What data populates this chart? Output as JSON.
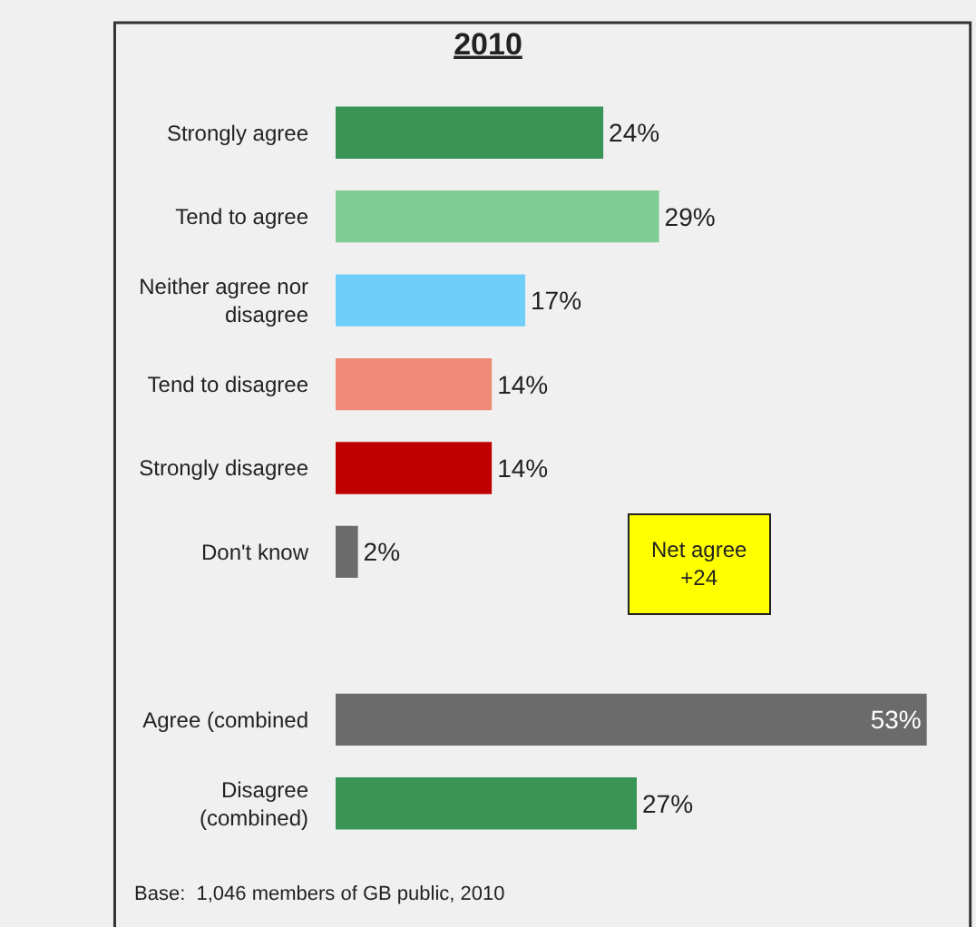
{
  "chart_data": {
    "type": "bar",
    "orientation": "horizontal",
    "title": "2010",
    "categories": [
      "Strongly agree",
      "Tend to agree",
      "Neither agree nor disagree",
      "Tend to disagree",
      "Strongly disagree",
      "Don't know",
      null,
      "Agree (combined",
      "Disagree (combined)"
    ],
    "values": [
      24,
      29,
      17,
      14,
      14,
      2,
      null,
      53,
      27
    ],
    "colors": [
      "#3a9455",
      "#7fcc95",
      "#70cff8",
      "#f08a78",
      "#c00000",
      "#6b6b6b",
      "#6b6b6b",
      "#6b6b6b",
      "#3a9455"
    ],
    "value_labels": [
      "24%",
      "29%",
      "17%",
      "14%",
      "14%",
      "2%",
      null,
      "53%",
      "27%"
    ],
    "tick_labels": "y",
    "legend": false,
    "annotations": [
      "Net agree\n+24",
      "Base:  1,046 members of GB public, 2010"
    ]
  }
}
